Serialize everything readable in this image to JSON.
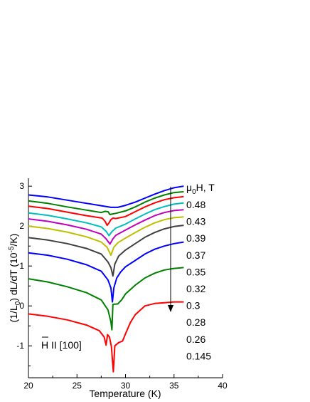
{
  "chart_data": {
    "type": "line",
    "xlabel": "Temperature (K)",
    "ylabel": "(1/L0) dL/dT (10-5/K)",
    "xlim": [
      20,
      40
    ],
    "ylim": [
      -1.8,
      3.2
    ],
    "xticks": [
      "20",
      "25",
      "30",
      "35",
      "40"
    ],
    "yticks": [
      "-1",
      "0",
      "1",
      "2",
      "3"
    ],
    "grid": false,
    "legend_title": "μ0H, T",
    "annotation": "H II [100]",
    "arrow_direction": "down",
    "series": [
      {
        "name": "0.48",
        "color": "#0000ff",
        "points": [
          [
            20,
            2.78
          ],
          [
            22,
            2.73
          ],
          [
            24,
            2.65
          ],
          [
            26,
            2.57
          ],
          [
            27.5,
            2.51
          ],
          [
            28.5,
            2.47
          ],
          [
            29.2,
            2.47
          ],
          [
            30,
            2.52
          ],
          [
            31,
            2.6
          ],
          [
            32,
            2.7
          ],
          [
            33,
            2.8
          ],
          [
            34,
            2.89
          ],
          [
            35,
            2.96
          ],
          [
            36,
            3.0
          ]
        ]
      },
      {
        "name": "0.43",
        "color": "#008000",
        "points": [
          [
            20,
            2.63
          ],
          [
            22,
            2.57
          ],
          [
            24,
            2.48
          ],
          [
            26,
            2.4
          ],
          [
            27.5,
            2.34
          ],
          [
            27.9,
            2.37
          ],
          [
            28.2,
            2.36
          ],
          [
            28.4,
            2.29
          ],
          [
            28.6,
            2.3
          ],
          [
            29,
            2.32
          ],
          [
            30,
            2.38
          ],
          [
            31,
            2.48
          ],
          [
            32,
            2.6
          ],
          [
            33,
            2.7
          ],
          [
            34,
            2.78
          ],
          [
            35,
            2.84
          ],
          [
            36,
            2.86
          ]
        ]
      },
      {
        "name": "0.39",
        "color": "#ff0000",
        "points": [
          [
            20,
            2.5
          ],
          [
            22,
            2.44
          ],
          [
            24,
            2.35
          ],
          [
            26,
            2.26
          ],
          [
            27.6,
            2.2
          ],
          [
            27.9,
            2.12
          ],
          [
            28.1,
            2.02
          ],
          [
            28.3,
            2.08
          ],
          [
            28.5,
            2.16
          ],
          [
            28.7,
            2.2
          ],
          [
            29,
            2.19
          ],
          [
            30,
            2.24
          ],
          [
            31,
            2.36
          ],
          [
            32,
            2.48
          ],
          [
            33,
            2.58
          ],
          [
            34,
            2.66
          ],
          [
            35,
            2.71
          ],
          [
            36,
            2.74
          ]
        ]
      },
      {
        "name": "0.37",
        "color": "#00bfbf",
        "points": [
          [
            20,
            2.33
          ],
          [
            22,
            2.27
          ],
          [
            24,
            2.18
          ],
          [
            26,
            2.08
          ],
          [
            27.5,
            1.98
          ],
          [
            28,
            1.87
          ],
          [
            28.3,
            1.76
          ],
          [
            28.6,
            1.86
          ],
          [
            29,
            1.95
          ],
          [
            30,
            2.05
          ],
          [
            31,
            2.18
          ],
          [
            32,
            2.3
          ],
          [
            33,
            2.41
          ],
          [
            34,
            2.49
          ],
          [
            35,
            2.55
          ],
          [
            36,
            2.58
          ]
        ]
      },
      {
        "name": "0.35",
        "color": "#bf00bf",
        "points": [
          [
            20,
            2.18
          ],
          [
            22,
            2.12
          ],
          [
            24,
            2.03
          ],
          [
            26,
            1.92
          ],
          [
            27.5,
            1.8
          ],
          [
            28,
            1.68
          ],
          [
            28.4,
            1.55
          ],
          [
            28.7,
            1.68
          ],
          [
            29,
            1.77
          ],
          [
            30,
            1.9
          ],
          [
            31,
            2.03
          ],
          [
            32,
            2.15
          ],
          [
            33,
            2.26
          ],
          [
            34,
            2.34
          ],
          [
            35,
            2.39
          ],
          [
            36,
            2.41
          ]
        ]
      },
      {
        "name": "0.32",
        "color": "#bfbf00",
        "points": [
          [
            20,
            2.0
          ],
          [
            22,
            1.94
          ],
          [
            24,
            1.85
          ],
          [
            26,
            1.73
          ],
          [
            27.5,
            1.6
          ],
          [
            28.1,
            1.47
          ],
          [
            28.5,
            1.27
          ],
          [
            28.8,
            1.47
          ],
          [
            29.2,
            1.58
          ],
          [
            30,
            1.7
          ],
          [
            31,
            1.84
          ],
          [
            32,
            1.97
          ],
          [
            33,
            2.08
          ],
          [
            34,
            2.16
          ],
          [
            35,
            2.21
          ],
          [
            36,
            2.23
          ]
        ]
      },
      {
        "name": "0.3",
        "color": "#404040",
        "points": [
          [
            20,
            1.71
          ],
          [
            22,
            1.65
          ],
          [
            24,
            1.56
          ],
          [
            26,
            1.44
          ],
          [
            27.5,
            1.3
          ],
          [
            28.2,
            1.1
          ],
          [
            28.5,
            0.96
          ],
          [
            28.7,
            0.75
          ],
          [
            28.9,
            1.05
          ],
          [
            29.3,
            1.25
          ],
          [
            30,
            1.4
          ],
          [
            31,
            1.56
          ],
          [
            32,
            1.72
          ],
          [
            33,
            1.84
          ],
          [
            34,
            1.93
          ],
          [
            35,
            1.99
          ],
          [
            36,
            2.02
          ]
        ]
      },
      {
        "name": "0.28",
        "color": "#0000ff",
        "points": [
          [
            20,
            1.33
          ],
          [
            22,
            1.27
          ],
          [
            24,
            1.17
          ],
          [
            26,
            1.03
          ],
          [
            27.5,
            0.87
          ],
          [
            28.2,
            0.65
          ],
          [
            28.5,
            0.45
          ],
          [
            28.65,
            0.1
          ],
          [
            28.8,
            0.45
          ],
          [
            29.1,
            0.7
          ],
          [
            29.5,
            0.85
          ],
          [
            30,
            0.98
          ],
          [
            31,
            1.14
          ],
          [
            32,
            1.3
          ],
          [
            33,
            1.42
          ],
          [
            34,
            1.5
          ],
          [
            35,
            1.56
          ],
          [
            36,
            1.6
          ]
        ]
      },
      {
        "name": "0.26",
        "color": "#008000",
        "points": [
          [
            20,
            0.68
          ],
          [
            22,
            0.6
          ],
          [
            24,
            0.48
          ],
          [
            26,
            0.33
          ],
          [
            27.5,
            0.15
          ],
          [
            28.2,
            -0.1
          ],
          [
            28.5,
            -0.4
          ],
          [
            28.6,
            -0.6
          ],
          [
            28.7,
            0.04
          ],
          [
            29.2,
            0.05
          ],
          [
            29.6,
            0.15
          ],
          [
            30,
            0.3
          ],
          [
            31,
            0.52
          ],
          [
            32,
            0.7
          ],
          [
            33,
            0.82
          ],
          [
            34,
            0.9
          ],
          [
            35,
            0.94
          ],
          [
            36,
            0.96
          ]
        ]
      },
      {
        "name": "0.145",
        "color": "#ff0000",
        "points": [
          [
            20,
            -0.2
          ],
          [
            22,
            -0.26
          ],
          [
            24,
            -0.35
          ],
          [
            26,
            -0.48
          ],
          [
            27.3,
            -0.62
          ],
          [
            27.8,
            -0.78
          ],
          [
            28.0,
            -0.98
          ],
          [
            28.15,
            -0.72
          ],
          [
            28.35,
            -0.78
          ],
          [
            28.55,
            -1.02
          ],
          [
            28.75,
            -1.65
          ],
          [
            28.9,
            -1.0
          ],
          [
            29.3,
            -0.92
          ],
          [
            29.7,
            -0.88
          ],
          [
            30,
            -0.7
          ],
          [
            30.5,
            -0.42
          ],
          [
            31,
            -0.22
          ],
          [
            32,
            0.0
          ],
          [
            33,
            0.06
          ],
          [
            34,
            0.08
          ],
          [
            35,
            0.1
          ],
          [
            36,
            0.1
          ]
        ]
      }
    ]
  }
}
